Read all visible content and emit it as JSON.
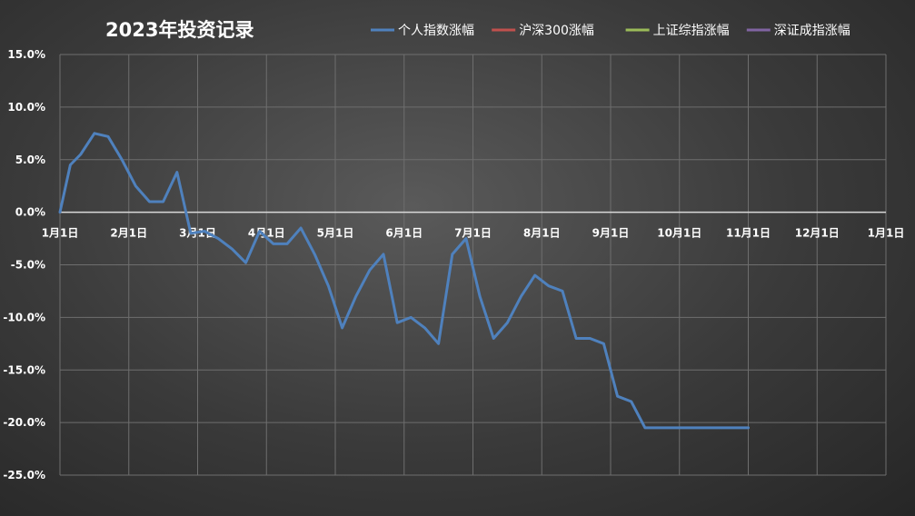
{
  "chart_data": {
    "type": "line",
    "title": "2023年投资记录",
    "x_tick_labels": [
      "1月1日",
      "2月1日",
      "3月1日",
      "4月1日",
      "5月1日",
      "6月1日",
      "7月1日",
      "8月1日",
      "9月1日",
      "10月1日",
      "11月1日",
      "12月1日",
      "1月1日"
    ],
    "y_tick_labels": [
      "15.0%",
      "10.0%",
      "5.0%",
      "0.0%",
      "-5.0%",
      "-10.0%",
      "-15.0%",
      "-20.0%",
      "-25.0%"
    ],
    "ylim": [
      -25,
      15
    ],
    "y_unit": "%",
    "xlim_months": [
      0,
      12
    ],
    "grid": true,
    "legend_position": "top",
    "series": [
      {
        "name": "个人指数涨幅",
        "color": "#4f81bd",
        "x": [
          0,
          0.15,
          0.3,
          0.5,
          0.7,
          0.9,
          1.1,
          1.3,
          1.5,
          1.7,
          1.9,
          2.1,
          2.3,
          2.5,
          2.7,
          2.9,
          3.1,
          3.3,
          3.5,
          3.7,
          3.9,
          4.1,
          4.3,
          4.5,
          4.7,
          4.9,
          5.1,
          5.3,
          5.5,
          5.7,
          5.9,
          6.1,
          6.3,
          6.5,
          6.7,
          6.9,
          7.1,
          7.3,
          7.5,
          7.7,
          7.9,
          8.1,
          8.3,
          8.5,
          8.7,
          8.9,
          9.1,
          9.3,
          9.5,
          9.7,
          9.9,
          10.0
        ],
        "y": [
          0,
          4.5,
          5.5,
          7.5,
          7.2,
          5.0,
          2.5,
          1.0,
          1.0,
          3.8,
          -2.0,
          -1.8,
          -2.5,
          -3.5,
          -4.8,
          -1.8,
          -3.0,
          -3.0,
          -1.5,
          -4.0,
          -7.0,
          -11.0,
          -8.0,
          -5.5,
          -4.0,
          -10.5,
          -10.0,
          -11.0,
          -12.5,
          -4.0,
          -2.5,
          -8.0,
          -12.0,
          -10.5,
          -8.0,
          -6.0,
          -7.0,
          -7.5,
          -12.0,
          -12.0,
          -12.5,
          -17.5,
          -18.0,
          -20.5,
          -20.5,
          -20.5,
          -20.5,
          -20.5,
          -20.5,
          -20.5,
          -20.5,
          -20.5
        ],
        "width": 3
      }
    ]
  },
  "legend": {
    "items": [
      {
        "label": "个人指数涨幅",
        "color": "#4f81bd"
      },
      {
        "label": "沪深300涨幅",
        "color": "#c0504d"
      },
      {
        "label": "上证综指涨幅",
        "color": "#9bbb59"
      },
      {
        "label": "深证成指涨幅",
        "color": "#8064a2"
      }
    ]
  }
}
